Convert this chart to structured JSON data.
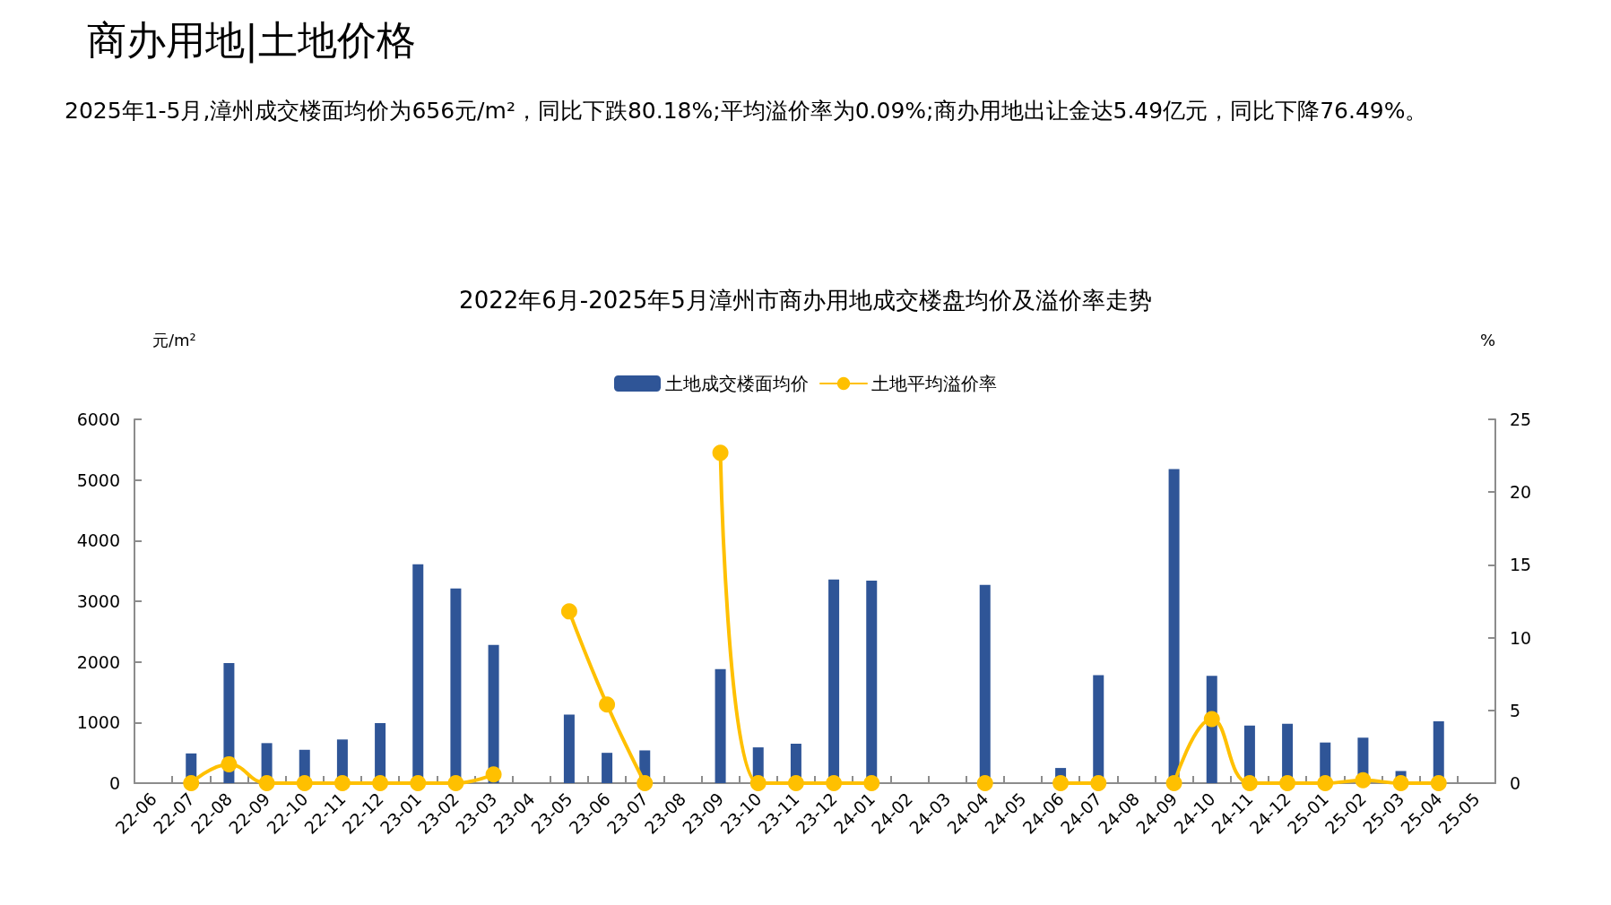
{
  "chart_data": {
    "type": "bar",
    "title": "2022年6月-2025年5月漳州市商办用地成交楼盘均价及溢价率走势",
    "ylabel": "元/m²",
    "y2label": "%",
    "annotations": [
      "商办用地|土地价格",
      "2025年1-5月,漳州成交楼面均价为656元/m²，同比下跌80.18%;平均溢价率为0.09%;商办用地出让金达5.49亿元，同比下降76.49%。"
    ],
    "categories": [
      "22-06",
      "22-07",
      "22-08",
      "22-09",
      "22-10",
      "22-11",
      "22-12",
      "23-01",
      "23-02",
      "23-03",
      "23-04",
      "23-05",
      "23-06",
      "23-07",
      "23-08",
      "23-09",
      "23-10",
      "23-11",
      "23-12",
      "24-01",
      "24-02",
      "24-03",
      "24-04",
      "24-05",
      "24-06",
      "24-07",
      "24-08",
      "24-09",
      "24-10",
      "24-11",
      "24-12",
      "25-01",
      "25-02",
      "25-03",
      "25-04",
      "25-05"
    ],
    "series": [
      {
        "name": "土地成交楼面均价",
        "color": "#2f5597",
        "values": [
          null,
          490,
          1980,
          660,
          550,
          720,
          990,
          3610,
          3210,
          2280,
          null,
          1130,
          500,
          540,
          null,
          1880,
          590,
          650,
          3360,
          3340,
          null,
          null,
          3270,
          null,
          250,
          1780,
          null,
          5180,
          1770,
          950,
          980,
          670,
          750,
          200,
          1020,
          null
        ]
      },
      {
        "name": "土地平均溢价率",
        "type": "line",
        "axis": "y2",
        "color": "#ffc000",
        "values": [
          null,
          0,
          1.3,
          0,
          0,
          0,
          0,
          0,
          0,
          0.6,
          null,
          11.8,
          5.4,
          0,
          null,
          22.7,
          0,
          0,
          0,
          0,
          null,
          null,
          0,
          null,
          0,
          0,
          null,
          0,
          4.4,
          0,
          0,
          0,
          0.2,
          0,
          0,
          null
        ]
      }
    ],
    "ylim": [
      0,
      6000
    ],
    "yticks": [
      0,
      1000,
      2000,
      3000,
      4000,
      5000,
      6000
    ],
    "y2lim": [
      0,
      25
    ],
    "y2ticks": [
      0,
      5,
      10,
      15,
      20,
      25
    ],
    "legend": "top",
    "grid": false,
    "marker": "circle",
    "line_style": "solid"
  }
}
